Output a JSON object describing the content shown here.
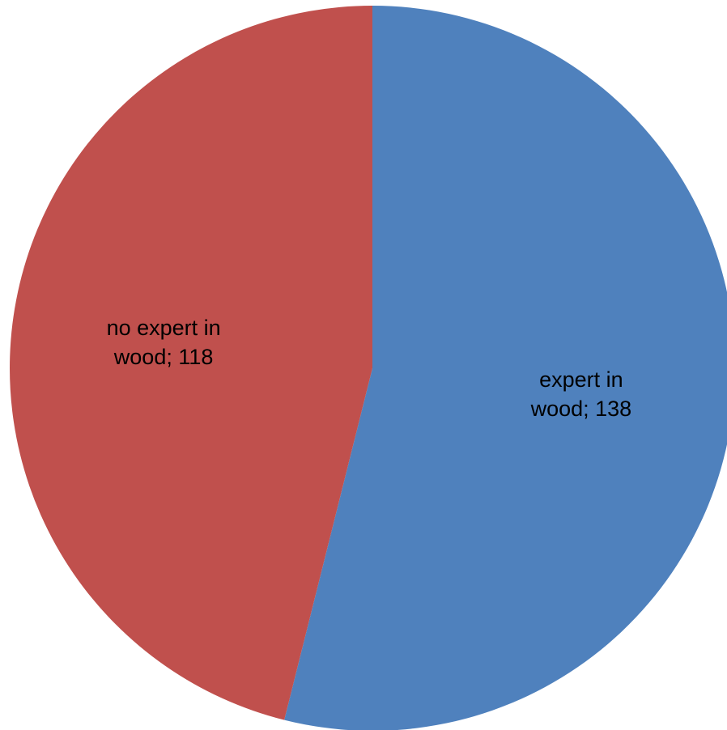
{
  "chart_data": {
    "type": "pie",
    "title": "",
    "legend": "none",
    "start_angle_deg": 0,
    "direction": "clockwise",
    "slices": [
      {
        "name": "expert in wood",
        "value": 138,
        "label_lines": [
          "expert in",
          "wood; 138"
        ],
        "color": "#4F81BD"
      },
      {
        "name": "no expert in wood",
        "value": 118,
        "label_lines": [
          "no expert in",
          "wood; 118"
        ],
        "color": "#C0504D"
      }
    ]
  }
}
